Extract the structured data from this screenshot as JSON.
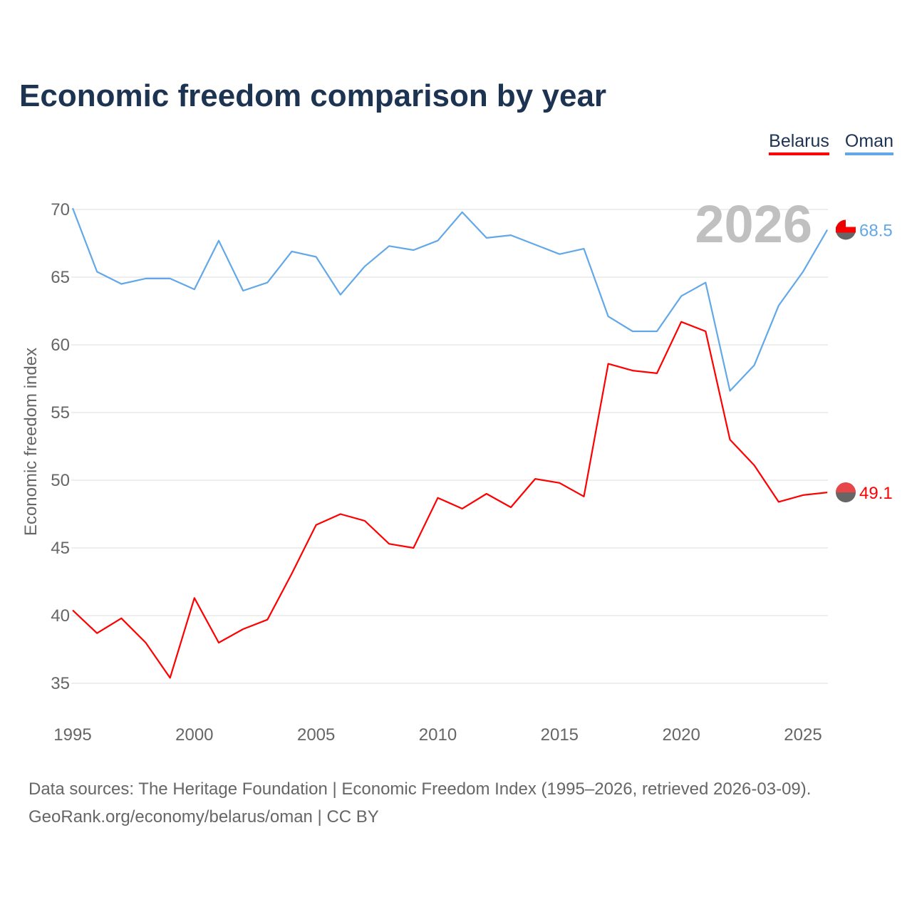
{
  "chart_data": {
    "type": "line",
    "title": "Economic freedom comparison by year",
    "xlabel": "",
    "ylabel": "Economic freedom index",
    "xlim": [
      1995,
      2026
    ],
    "ylim": [
      35,
      70
    ],
    "yticks": [
      35,
      40,
      45,
      50,
      55,
      60,
      65,
      70
    ],
    "xticks": [
      1995,
      2000,
      2005,
      2010,
      2015,
      2020,
      2025
    ],
    "grid": true,
    "legend": "top-right",
    "current_year_label": "2026",
    "x": [
      1995,
      1996,
      1997,
      1998,
      1999,
      2000,
      2001,
      2002,
      2003,
      2004,
      2005,
      2006,
      2007,
      2008,
      2009,
      2010,
      2011,
      2012,
      2013,
      2014,
      2015,
      2016,
      2017,
      2018,
      2019,
      2020,
      2021,
      2022,
      2023,
      2024,
      2025,
      2026
    ],
    "series": [
      {
        "name": "Belarus",
        "color": "#ff0000",
        "end_label": "49.1",
        "values": [
          40.4,
          38.7,
          39.8,
          38.0,
          35.4,
          41.3,
          38.0,
          39.0,
          39.7,
          43.1,
          46.7,
          47.5,
          47.0,
          45.3,
          45.0,
          48.7,
          47.9,
          49.0,
          48.0,
          50.1,
          49.8,
          48.8,
          58.6,
          58.1,
          57.9,
          61.7,
          61.0,
          53.0,
          51.1,
          48.4,
          48.9,
          49.1
        ]
      },
      {
        "name": "Oman",
        "color": "#62a8e8",
        "end_label": "68.5",
        "values": [
          70.1,
          65.4,
          64.5,
          64.9,
          64.9,
          64.1,
          67.7,
          64.0,
          64.6,
          66.9,
          66.5,
          63.7,
          65.8,
          67.3,
          67.0,
          67.7,
          69.8,
          67.9,
          68.1,
          67.4,
          66.7,
          67.1,
          62.1,
          61.0,
          61.0,
          63.6,
          64.6,
          56.6,
          58.5,
          62.9,
          65.4,
          68.5
        ]
      }
    ]
  },
  "source": {
    "line1": "Data sources: The Heritage Foundation | Economic Freedom Index (1995–2026, retrieved 2026-03-09).",
    "line2": "GeoRank.org/economy/belarus/oman | CC BY"
  }
}
